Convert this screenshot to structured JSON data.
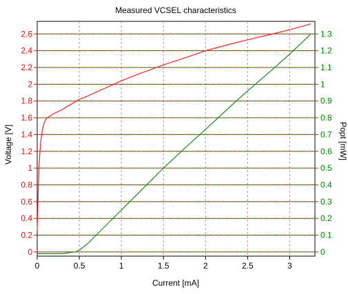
{
  "chart_data": {
    "type": "line",
    "title": "Measured VCSEL characteristics",
    "xlabel": "Current [mA]",
    "ylabel_left": "Voltage [V]",
    "ylabel_right": "Popt [mW]",
    "xlim": [
      0,
      3.3
    ],
    "ylim_left": [
      -0.05,
      2.75
    ],
    "ylim_right": [
      -0.025,
      1.375
    ],
    "x_ticks": [
      "0",
      "0.5",
      "1",
      "1.5",
      "2",
      "2.5",
      "3"
    ],
    "y_left_ticks": [
      "0",
      "0.2",
      "0.4",
      "0.6",
      "0.8",
      "1",
      "1.2",
      "1.4",
      "1.6",
      "1.8",
      "2",
      "2.2",
      "2.4",
      "2.6"
    ],
    "y_right_ticks": [
      "0",
      "0.1",
      "0.2",
      "0.3",
      "0.4",
      "0.5",
      "0.6",
      "0.7",
      "0.8",
      "0.9",
      "1",
      "1.1",
      "1.2",
      "1.3"
    ],
    "grid": true,
    "colors": {
      "voltage": "#e8231f",
      "power": "#1a8a1a",
      "title": "#0000e0",
      "axis_left": "#ff0000",
      "axis_right": "#008000"
    },
    "series": [
      {
        "axis": "left",
        "color": "#e8231f",
        "x": [
          0.0,
          0.02,
          0.04,
          0.06,
          0.08,
          0.1,
          0.12,
          0.15,
          0.2,
          0.3,
          0.4,
          0.5,
          0.6,
          0.8,
          1.0,
          1.2,
          1.5,
          1.8,
          2.0,
          2.3,
          2.5,
          2.8,
          3.0,
          3.15,
          3.25
        ],
        "values": [
          0.25,
          1.0,
          1.3,
          1.45,
          1.53,
          1.58,
          1.6,
          1.62,
          1.65,
          1.7,
          1.76,
          1.82,
          1.86,
          1.95,
          2.04,
          2.12,
          2.23,
          2.33,
          2.4,
          2.48,
          2.53,
          2.6,
          2.65,
          2.69,
          2.72
        ]
      },
      {
        "axis": "right",
        "color": "#1a8a1a",
        "x": [
          0.0,
          0.3,
          0.45,
          0.5,
          0.55,
          0.6,
          0.8,
          1.0,
          1.2,
          1.5,
          1.8,
          2.0,
          2.3,
          2.5,
          2.8,
          3.0,
          3.15,
          3.25
        ],
        "values": [
          -0.01,
          -0.01,
          0.0,
          0.01,
          0.03,
          0.05,
          0.15,
          0.25,
          0.35,
          0.5,
          0.64,
          0.73,
          0.87,
          0.96,
          1.09,
          1.18,
          1.25,
          1.3
        ]
      }
    ]
  }
}
